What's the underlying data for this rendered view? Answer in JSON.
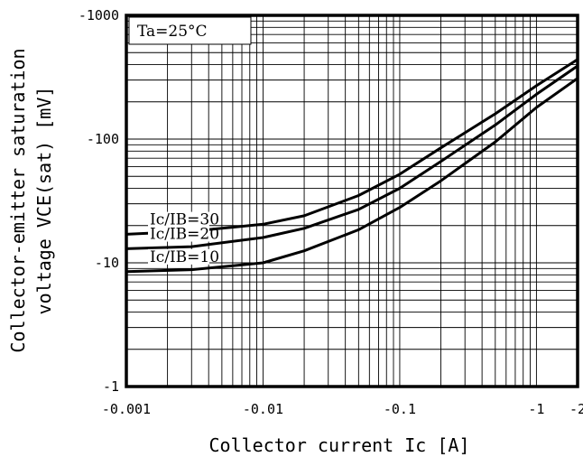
{
  "chart_data": {
    "type": "line",
    "title": "",
    "xlabel": "Collector current Ic [A]",
    "ylabel_line1": "Collector-emitter saturation",
    "ylabel_line2": "voltage VCE(sat) [mV]",
    "x_scale": "log",
    "y_scale": "log",
    "xlim": [
      0.001,
      2
    ],
    "ylim": [
      1,
      1000
    ],
    "x_ticks": [
      {
        "value": 0.001,
        "label": "-0.001"
      },
      {
        "value": 0.01,
        "label": "-0.01"
      },
      {
        "value": 0.1,
        "label": "-0.1"
      },
      {
        "value": 1,
        "label": "-1"
      },
      {
        "value": 2,
        "label": "-2"
      }
    ],
    "y_ticks": [
      {
        "value": 1,
        "label": "-1"
      },
      {
        "value": 10,
        "label": "-10"
      },
      {
        "value": 100,
        "label": "-100"
      },
      {
        "value": 1000,
        "label": "-1000"
      }
    ],
    "grid": true,
    "annotation": "Ta=25°C",
    "series": [
      {
        "name": "Ic/IB=30",
        "x": [
          0.001,
          0.003,
          0.01,
          0.02,
          0.05,
          0.1,
          0.2,
          0.5,
          1,
          2
        ],
        "y": [
          17,
          18,
          20.5,
          24,
          35,
          52,
          85,
          160,
          270,
          440
        ]
      },
      {
        "name": "Ic/IB=20",
        "x": [
          0.001,
          0.003,
          0.01,
          0.02,
          0.05,
          0.1,
          0.2,
          0.5,
          1,
          2
        ],
        "y": [
          13,
          13.5,
          16,
          19,
          27,
          40,
          66,
          130,
          230,
          390
        ]
      },
      {
        "name": "Ic/IB=10",
        "x": [
          0.001,
          0.003,
          0.01,
          0.02,
          0.05,
          0.1,
          0.2,
          0.5,
          1,
          2
        ],
        "y": [
          8.5,
          8.8,
          10,
          12.5,
          18.5,
          28,
          46,
          95,
          180,
          310
        ]
      }
    ]
  }
}
